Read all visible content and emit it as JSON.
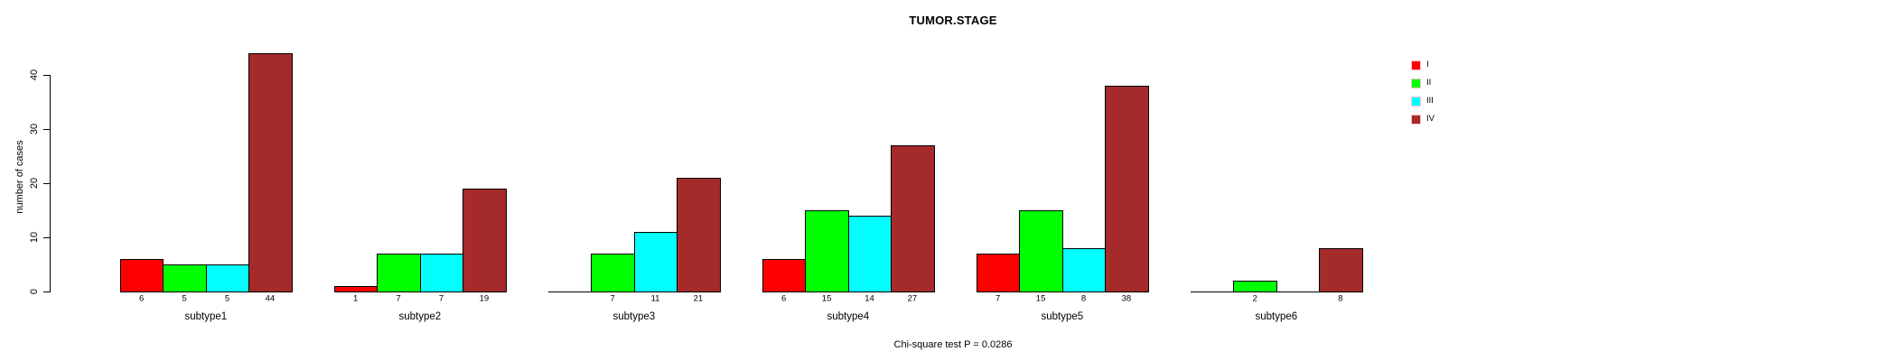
{
  "title": "TUMOR.STAGE",
  "caption": "Chi-square test P = 0.0286",
  "chart_data": {
    "type": "bar",
    "title": "TUMOR.STAGE",
    "xlabel": "",
    "ylabel": "number of cases",
    "categories": [
      "subtype1",
      "subtype2",
      "subtype3",
      "subtype4",
      "subtype5",
      "subtype6"
    ],
    "series": [
      {
        "name": "I",
        "color": "#ff0000",
        "values": [
          6,
          1,
          0,
          6,
          7,
          0
        ]
      },
      {
        "name": "II",
        "color": "#00ff00",
        "values": [
          5,
          7,
          7,
          15,
          15,
          2
        ]
      },
      {
        "name": "III",
        "color": "#00ffff",
        "values": [
          5,
          7,
          11,
          14,
          8,
          0
        ]
      },
      {
        "name": "IV",
        "color": "#a52a2a",
        "values": [
          44,
          19,
          21,
          27,
          38,
          8
        ]
      }
    ],
    "bar_value_labels": [
      [
        "6",
        "5",
        "5",
        "44"
      ],
      [
        "1",
        "7",
        "7",
        "19"
      ],
      [
        "",
        "7",
        "11",
        "21"
      ],
      [
        "6",
        "15",
        "14",
        "27"
      ],
      [
        "7",
        "15",
        "8",
        "38"
      ],
      [
        "",
        "2",
        "",
        "8"
      ]
    ],
    "yticks": [
      0,
      10,
      20,
      30,
      40
    ],
    "ylim": [
      0,
      44
    ],
    "grid": false,
    "legend_position": "top-right",
    "legend_entries": [
      "I",
      "II",
      "III",
      "IV"
    ],
    "annotation": "Chi-square test P = 0.0286",
    "background_color": "#ffffff",
    "bar_border_color": "#000000"
  }
}
